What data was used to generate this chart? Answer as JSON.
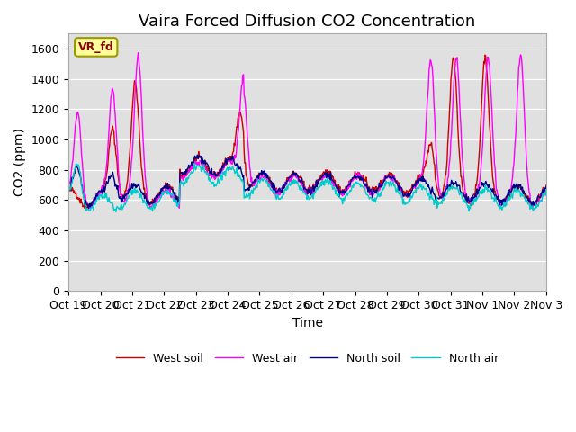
{
  "title": "Vaira Forced Diffusion CO2 Concentration",
  "xlabel": "Time",
  "ylabel": "CO2 (ppm)",
  "ylim": [
    0,
    1700
  ],
  "yticks": [
    0,
    200,
    400,
    600,
    800,
    1000,
    1200,
    1400,
    1600
  ],
  "x_labels": [
    "Oct 19",
    "Oct 20",
    "Oct 21",
    "Oct 22",
    "Oct 23",
    "Oct 24",
    "Oct 25",
    "Oct 26",
    "Oct 27",
    "Oct 28",
    "Oct 29",
    "Oct 30",
    "Oct 31",
    "Nov 1",
    "Nov 2",
    "Nov 3"
  ],
  "label_tag": "VR_fd",
  "bg_color": "#e0e0e0",
  "line_colors": {
    "west_soil": "#cc0000",
    "west_air": "#ff00ff",
    "north_soil": "#00008b",
    "north_air": "#00cccc"
  },
  "legend_labels": [
    "West soil",
    "West air",
    "North soil",
    "North air"
  ],
  "title_fontsize": 13,
  "axis_fontsize": 10,
  "tick_fontsize": 9
}
